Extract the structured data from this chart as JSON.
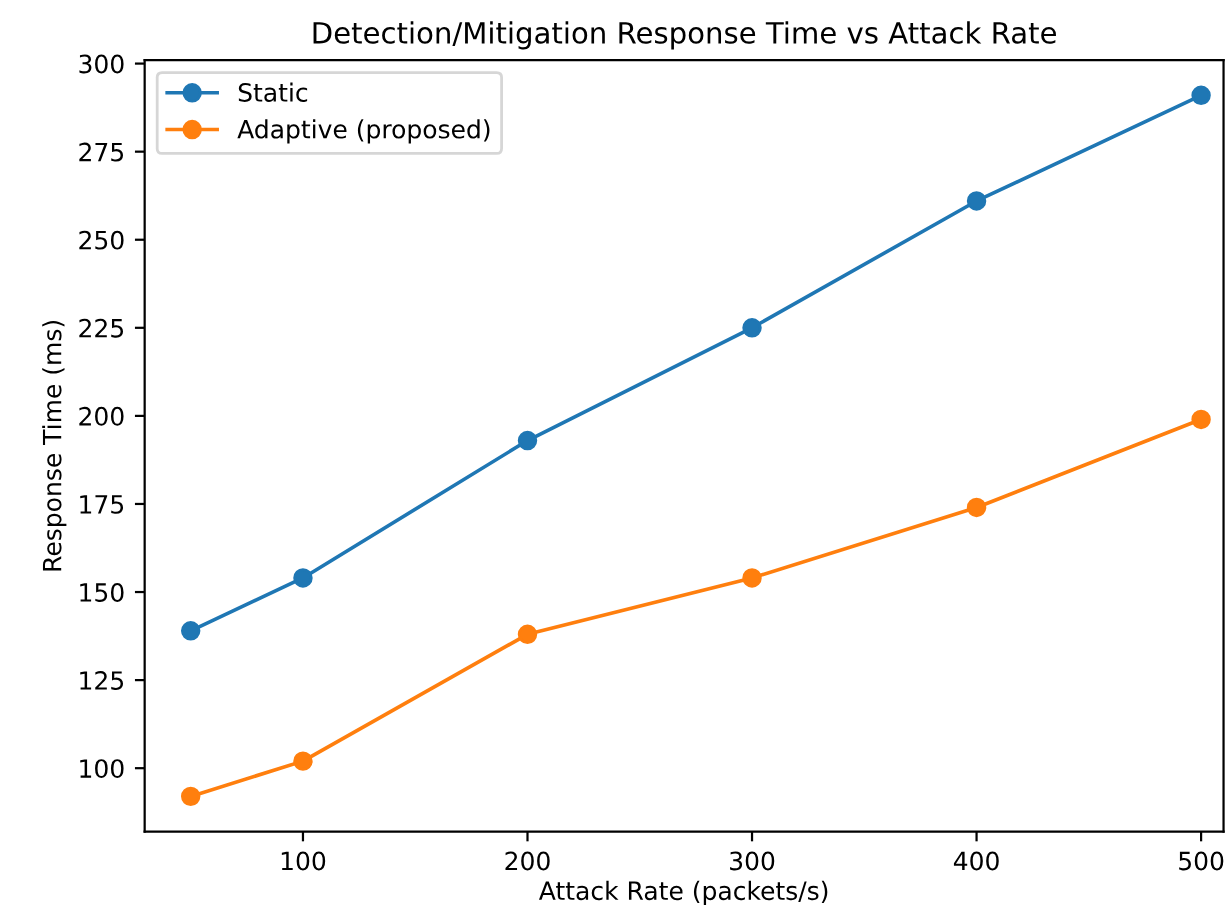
{
  "chart_data": {
    "type": "line",
    "title": "Detection/Mitigation Response Time vs Attack Rate",
    "xlabel": "Attack Rate (packets/s)",
    "ylabel": "Response Time (ms)",
    "x": [
      50,
      100,
      200,
      300,
      400,
      500
    ],
    "series": [
      {
        "name": "Static",
        "color": "#1f77b4",
        "values": [
          139,
          154,
          193,
          225,
          261,
          291
        ]
      },
      {
        "name": "Adaptive (proposed)",
        "color": "#ff7f0e",
        "values": [
          92,
          102,
          138,
          154,
          174,
          199
        ]
      }
    ],
    "xlim": [
      29.5,
      510
    ],
    "ylim": [
      82,
      301
    ],
    "xticks": [
      100,
      200,
      300,
      400,
      500
    ],
    "yticks": [
      100,
      125,
      150,
      175,
      200,
      225,
      250,
      275,
      300
    ],
    "marker": "circle",
    "legend": "top left",
    "grid": false
  }
}
